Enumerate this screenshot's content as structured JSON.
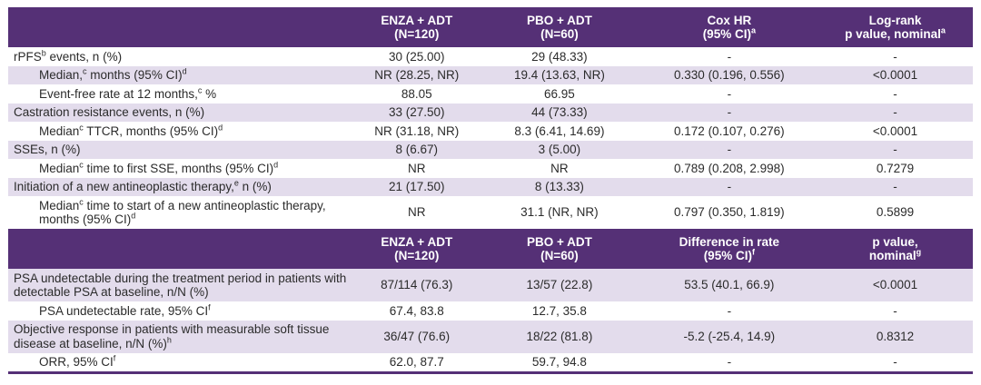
{
  "page": {
    "background": "#ffffff"
  },
  "table": {
    "colors": {
      "header_bg": "#553076",
      "header_text": "#ffffff",
      "row_shaded_bg": "#e3dcec",
      "row_plain_bg": "#ffffff",
      "body_text": "#2b2b2b",
      "bottom_border": "#553076"
    },
    "sections": [
      {
        "headers": [
          "",
          "ENZA + ADT\n(N=120)",
          "PBO + ADT\n(N=60)",
          "Cox HR\n(95% CI)^a^",
          "Log-rank\np value, nominal^a^"
        ],
        "rows": [
          {
            "indent": false,
            "shaded": false,
            "label": "rPFS^b^ events, n (%)",
            "values": [
              "30 (25.00)",
              "29 (48.33)",
              "-",
              "-"
            ]
          },
          {
            "indent": true,
            "shaded": true,
            "label": "Median,^c^ months (95% CI)^d^",
            "values": [
              "NR (28.25, NR)",
              "19.4 (13.63, NR)",
              "0.330 (0.196, 0.556)",
              "<0.0001"
            ]
          },
          {
            "indent": true,
            "shaded": false,
            "label": "Event-free rate at 12 months,^c^ %",
            "values": [
              "88.05",
              "66.95",
              "-",
              "-"
            ]
          },
          {
            "indent": false,
            "shaded": true,
            "label": "Castration resistance events, n (%)",
            "values": [
              "33 (27.50)",
              "44 (73.33)",
              "-",
              "-"
            ]
          },
          {
            "indent": true,
            "shaded": false,
            "label": "Median^c^ TTCR, months (95% CI)^d^",
            "values": [
              "NR (31.18, NR)",
              "8.3 (6.41, 14.69)",
              "0.172 (0.107, 0.276)",
              "<0.0001"
            ]
          },
          {
            "indent": false,
            "shaded": true,
            "label": "SSEs, n (%)",
            "values": [
              "8 (6.67)",
              "3 (5.00)",
              "-",
              "-"
            ]
          },
          {
            "indent": true,
            "shaded": false,
            "label": "Median^c^ time to first SSE, months (95% CI)^d^",
            "values": [
              "NR",
              "NR",
              "0.789 (0.208, 2.998)",
              "0.7279"
            ]
          },
          {
            "indent": false,
            "shaded": true,
            "label": "Initiation of a new antineoplastic therapy,^e^ n (%)",
            "values": [
              "21 (17.50)",
              "8 (13.33)",
              "-",
              "-"
            ]
          },
          {
            "indent": true,
            "shaded": false,
            "label": "Median^c^ time to start of a new antineoplastic therapy, months (95% CI)^d^",
            "values": [
              "NR",
              "31.1 (NR, NR)",
              "0.797 (0.350, 1.819)",
              "0.5899"
            ]
          }
        ]
      },
      {
        "headers": [
          "",
          "ENZA + ADT\n(N=120)",
          "PBO + ADT\n(N=60)",
          "Difference in rate\n(95% CI)^f^",
          "p value,\nnominal^g^"
        ],
        "rows": [
          {
            "indent": false,
            "shaded": true,
            "label": "PSA undetectable during the treatment period in patients with detectable PSA at baseline, n/N (%)",
            "values": [
              "87/114 (76.3)",
              "13/57 (22.8)",
              "53.5 (40.1, 66.9)",
              "<0.0001"
            ]
          },
          {
            "indent": true,
            "shaded": false,
            "label": "PSA undetectable rate, 95% CI^f^",
            "values": [
              "67.4, 83.8",
              "12.7, 35.8",
              "-",
              "-"
            ]
          },
          {
            "indent": false,
            "shaded": true,
            "label": "Objective response in patients with measurable soft tissue disease at baseline, n/N (%)^h^",
            "values": [
              "36/47 (76.6)",
              "18/22 (81.8)",
              "-5.2 (-25.4, 14.9)",
              "0.8312"
            ]
          },
          {
            "indent": true,
            "shaded": false,
            "label": "ORR, 95% CI^f^",
            "values": [
              "62.0, 87.7",
              "59.7, 94.8",
              "-",
              "-"
            ]
          }
        ]
      }
    ]
  }
}
